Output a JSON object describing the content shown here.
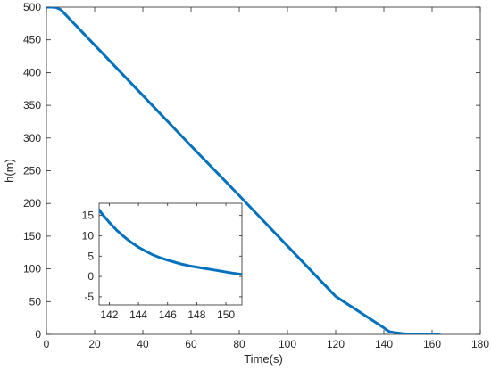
{
  "chart_data": [
    {
      "type": "line",
      "title": "",
      "xlabel": "Time(s)",
      "ylabel": "h(m)",
      "xlim": [
        0,
        180
      ],
      "ylim": [
        0,
        500
      ],
      "xticks": [
        0,
        20,
        40,
        60,
        80,
        100,
        120,
        140,
        160,
        180
      ],
      "yticks": [
        0,
        50,
        100,
        150,
        200,
        250,
        300,
        350,
        400,
        450,
        500
      ],
      "grid": false,
      "legend": "none",
      "series_color": "#0072bd",
      "series": [
        {
          "x": [
            0,
            2,
            4,
            6,
            20,
            40,
            60,
            80,
            100,
            120,
            140,
            141.5,
            142.5,
            144,
            146,
            148,
            150,
            152,
            155,
            160,
            163
          ],
          "y": [
            500,
            500,
            499.5,
            496,
            442,
            365,
            288,
            212,
            135,
            58,
            10,
            6,
            4,
            3,
            2,
            1,
            0.5,
            0.2,
            0,
            0,
            0
          ]
        }
      ]
    },
    {
      "type": "line",
      "title": "",
      "xlabel": "",
      "ylabel": "",
      "xlim": [
        141.3,
        151.1
      ],
      "ylim": [
        -7,
        18
      ],
      "xticks": [
        142,
        144,
        146,
        148,
        150
      ],
      "yticks": [
        -5,
        0,
        5,
        10,
        15
      ],
      "grid": false,
      "legend": "none",
      "series_color": "#0072bd",
      "series": [
        {
          "x": [
            141.3,
            141.5,
            142,
            142.5,
            143,
            143.5,
            144,
            144.5,
            145,
            145.5,
            146,
            146.5,
            147,
            147.5,
            148,
            148.5,
            149,
            149.5,
            150,
            150.5,
            151.1
          ],
          "y": [
            16.4,
            15.4,
            13.3,
            11.4,
            9.8,
            8.4,
            7.2,
            6.2,
            5.3,
            4.6,
            4.0,
            3.5,
            3.0,
            2.6,
            2.3,
            2.0,
            1.7,
            1.4,
            1.1,
            0.8,
            0.5
          ]
        }
      ]
    }
  ]
}
